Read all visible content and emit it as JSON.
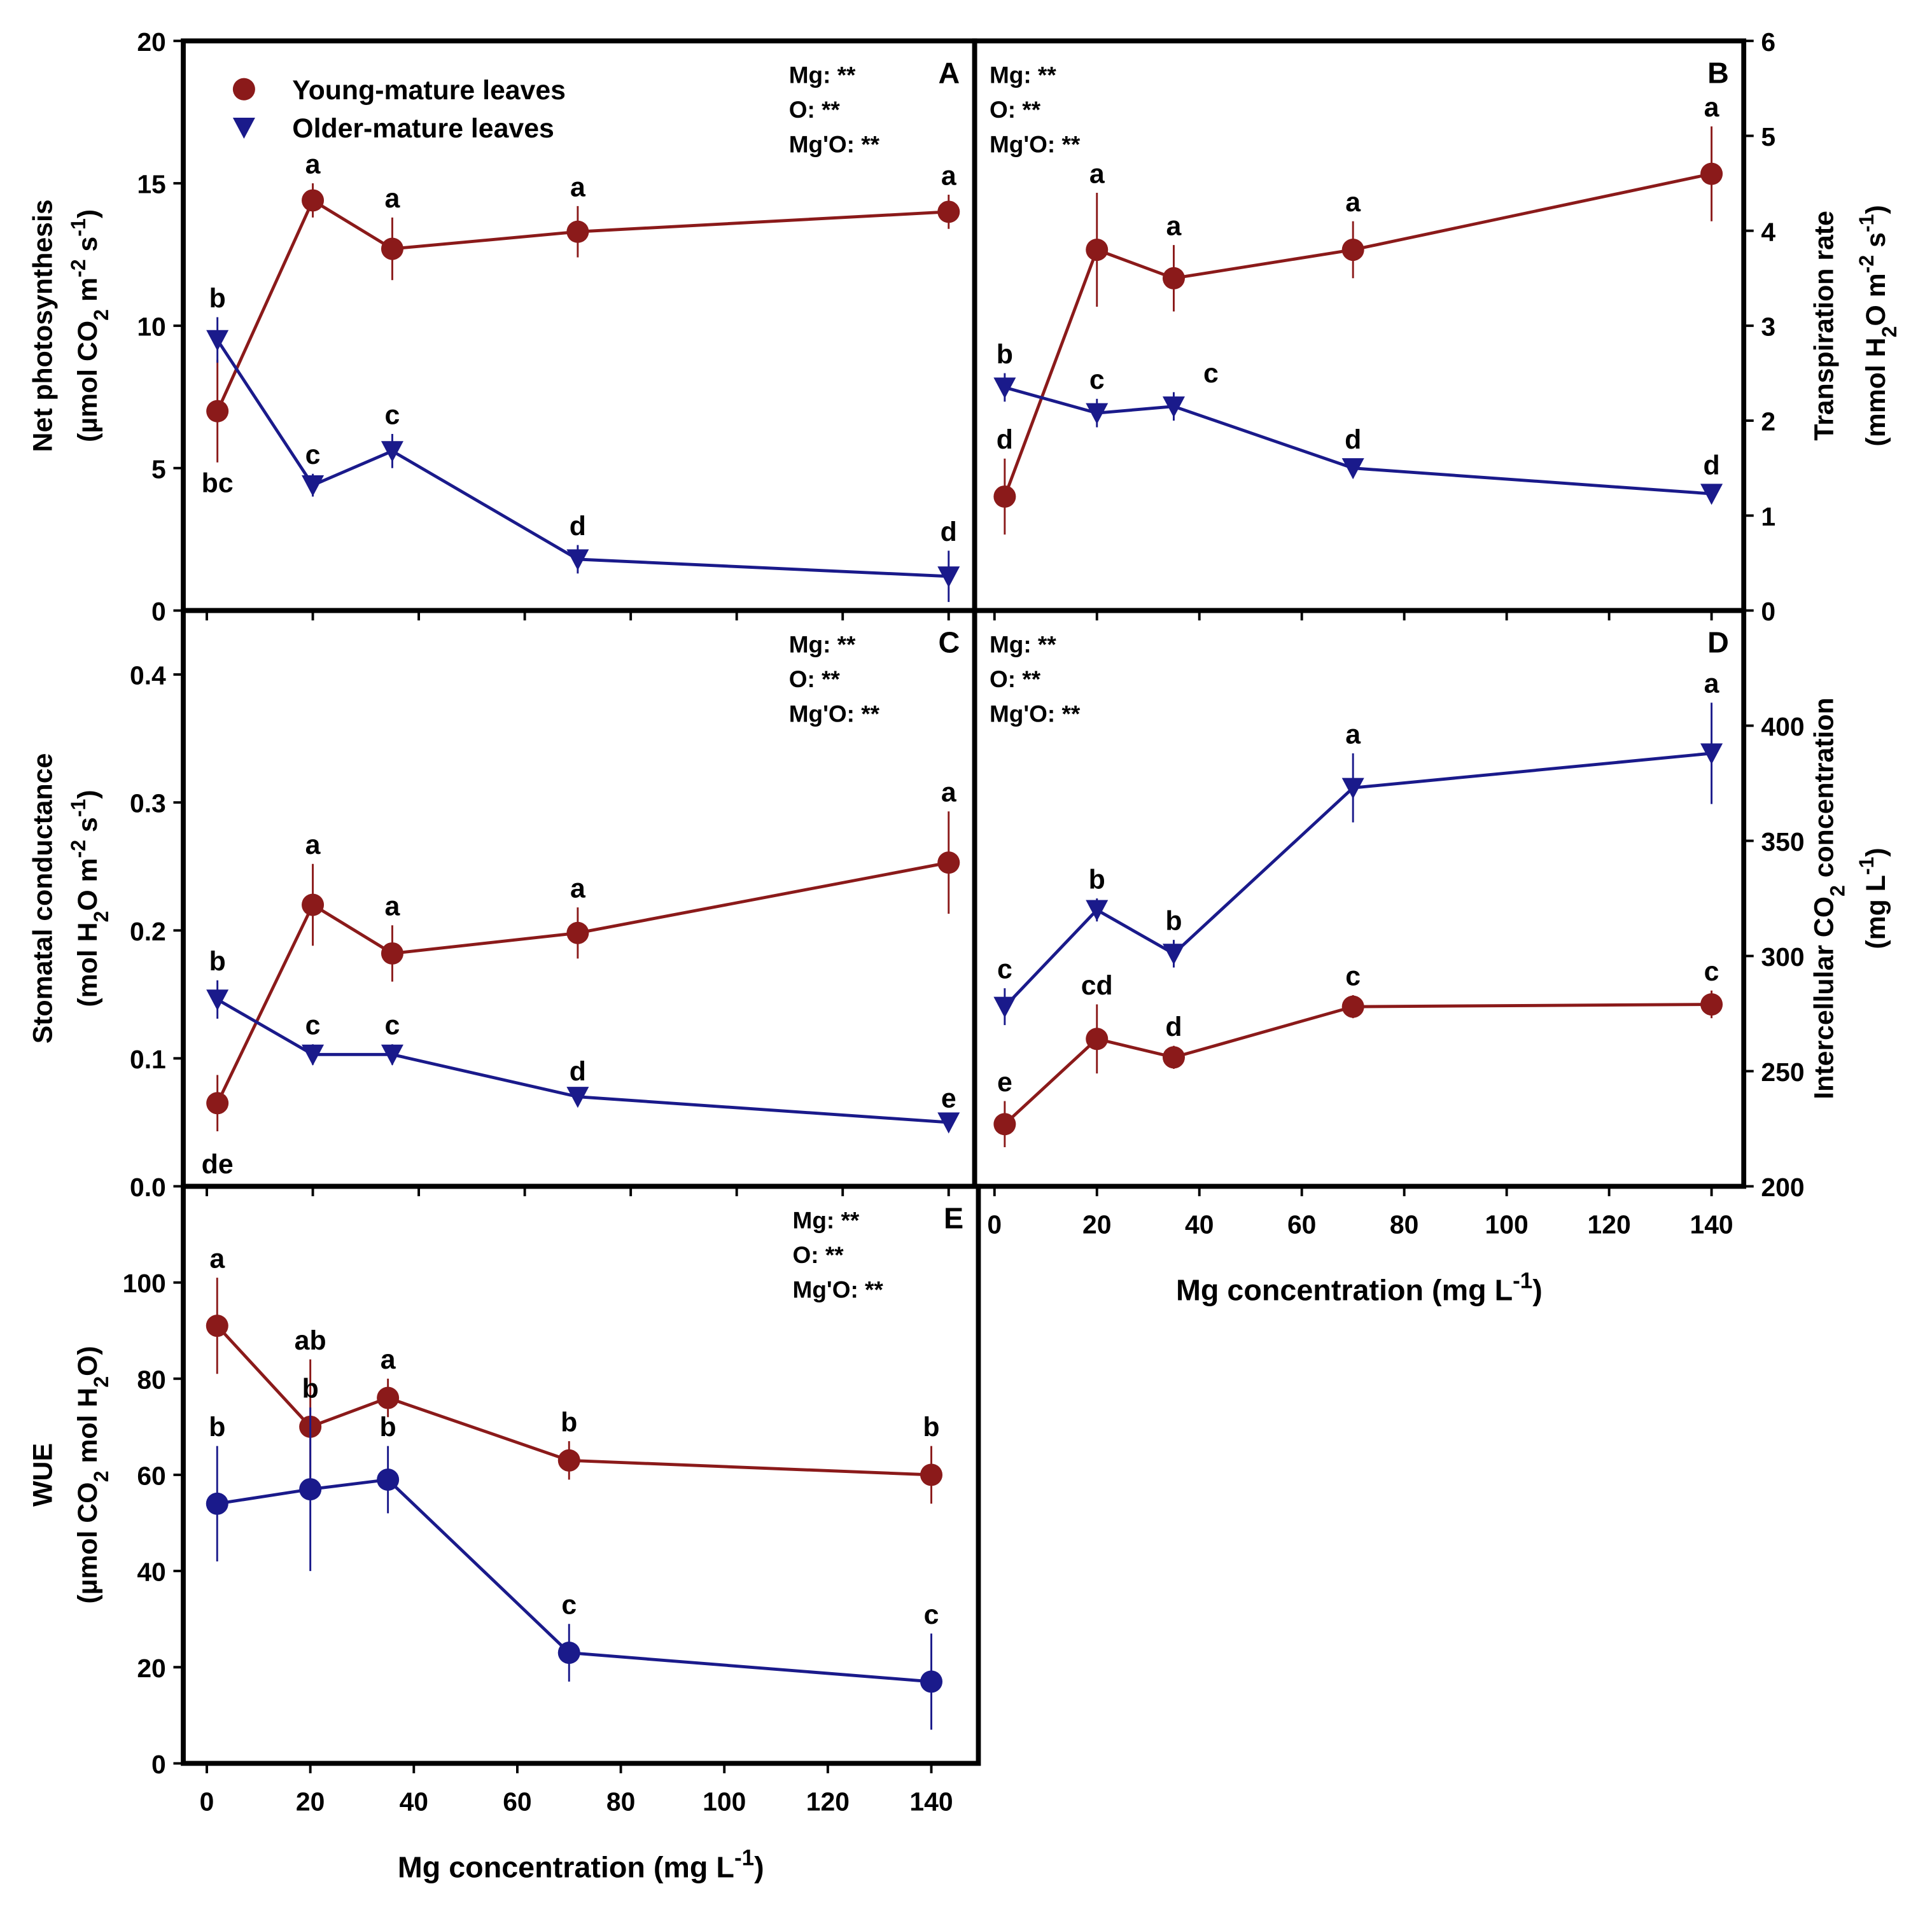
{
  "chart_data": {
    "type": "line",
    "legend": {
      "placement": "top-left",
      "entries": [
        {
          "name": "Young-mature leaves",
          "color": "#8b1a1a",
          "marker": "circle"
        },
        {
          "name": "Older-mature leaves",
          "color": "#1a1a8b",
          "marker": "triangle-down"
        }
      ]
    },
    "x": [
      2,
      20,
      35,
      70,
      140
    ],
    "xlabel": [
      {
        "t": "Mg concentration (mg L"
      },
      {
        "t": "-1",
        "s": "sup"
      },
      {
        "t": ")"
      }
    ],
    "xticks": [
      0,
      20,
      40,
      60,
      80,
      100,
      120,
      140
    ],
    "xlim": [
      0,
      140
    ],
    "panels": [
      {
        "id": "A",
        "letter": "A",
        "ylim": [
          0,
          20
        ],
        "yticks": [
          0,
          5,
          10,
          15,
          20
        ],
        "yticklabels": [
          "0",
          "5",
          "10",
          "15",
          "20"
        ],
        "ylabel": [
          [
            {
              "t": "Net photosynthesis"
            }
          ],
          [
            {
              "t": "(µmol CO"
            },
            {
              "t": "2",
              "s": "sub"
            },
            {
              "t": " m"
            },
            {
              "t": "-2",
              "s": "sup"
            },
            {
              "t": " s"
            },
            {
              "t": "-1",
              "s": "sup"
            },
            {
              "t": ")"
            }
          ]
        ],
        "stats": [
          "Mg: **",
          "O: **",
          "Mg'O: **"
        ],
        "series": [
          {
            "name": "Young-mature leaves",
            "values": [
              7.0,
              14.4,
              12.7,
              13.3,
              14.0
            ],
            "errors": [
              1.8,
              0.6,
              1.1,
              0.9,
              0.6
            ],
            "letters": [
              "bc",
              "a",
              "a",
              "a",
              "a"
            ]
          },
          {
            "name": "Older-mature leaves",
            "values": [
              9.5,
              4.4,
              5.6,
              1.8,
              1.2
            ],
            "errors": [
              0.8,
              0.4,
              0.6,
              0.5,
              0.9
            ],
            "letters": [
              "b",
              "c",
              "c",
              "d",
              "d"
            ]
          }
        ]
      },
      {
        "id": "B",
        "letter": "B",
        "ylim": [
          0,
          6
        ],
        "yticks": [
          0,
          1,
          2,
          3,
          4,
          5,
          6
        ],
        "yticklabels": [
          "0",
          "1",
          "2",
          "3",
          "4",
          "5",
          "6"
        ],
        "ylabel": [
          [
            {
              "t": "Transpiration rate"
            }
          ],
          [
            {
              "t": "(mmol H"
            },
            {
              "t": "2",
              "s": "sub"
            },
            {
              "t": "O m"
            },
            {
              "t": "-2",
              "s": "sup"
            },
            {
              "t": " s"
            },
            {
              "t": "-1",
              "s": "sup"
            },
            {
              "t": ")"
            }
          ]
        ],
        "stats": [
          "Mg: **",
          "O: **",
          "Mg'O: **"
        ],
        "series": [
          {
            "name": "Young-mature leaves",
            "values": [
              1.2,
              3.8,
              3.5,
              3.8,
              4.6
            ],
            "errors": [
              0.4,
              0.6,
              0.35,
              0.3,
              0.5
            ],
            "letters": [
              "d",
              "a",
              "a",
              "a",
              "a"
            ]
          },
          {
            "name": "Older-mature leaves",
            "values": [
              2.35,
              2.08,
              2.15,
              1.5,
              1.23
            ],
            "errors": [
              0.15,
              0.15,
              0.15,
              0.1,
              0.1
            ],
            "letters": [
              "b",
              "c",
              "c",
              "d",
              "d"
            ]
          }
        ]
      },
      {
        "id": "C",
        "letter": "C",
        "ylim": [
          0,
          0.45
        ],
        "yticks": [
          0,
          0.1,
          0.2,
          0.3,
          0.4
        ],
        "yticklabels": [
          "0.0",
          "0.1",
          "0.2",
          "0.3",
          "0.4"
        ],
        "ylabel": [
          [
            {
              "t": "Stomatal conductance"
            }
          ],
          [
            {
              "t": "(mol H"
            },
            {
              "t": "2",
              "s": "sub"
            },
            {
              "t": "O m"
            },
            {
              "t": "-2",
              "s": "sup"
            },
            {
              "t": " s"
            },
            {
              "t": "-1",
              "s": "sup"
            },
            {
              "t": ")"
            }
          ]
        ],
        "stats": [
          "Mg: **",
          "O: **",
          "Mg'O: **"
        ],
        "series": [
          {
            "name": "Young-mature leaves",
            "values": [
              0.065,
              0.22,
              0.182,
              0.198,
              0.253
            ],
            "errors": [
              0.022,
              0.032,
              0.022,
              0.02,
              0.04
            ],
            "letters": [
              "de",
              "a",
              "a",
              "a",
              "a"
            ]
          },
          {
            "name": "Older-mature leaves",
            "values": [
              0.146,
              0.103,
              0.103,
              0.07,
              0.05
            ],
            "errors": [
              0.015,
              0.008,
              0.008,
              0.005,
              0.004
            ],
            "letters": [
              "b",
              "c",
              "c",
              "d",
              "e"
            ]
          }
        ]
      },
      {
        "id": "D",
        "letter": "D",
        "ylim": [
          200,
          450
        ],
        "yticks": [
          200,
          250,
          300,
          350,
          400
        ],
        "yticklabels": [
          "200",
          "250",
          "300",
          "350",
          "400"
        ],
        "ylabel": [
          [
            {
              "t": "Intercellular CO"
            },
            {
              "t": "2",
              "s": "sub"
            },
            {
              "t": " concentration"
            }
          ],
          [
            {
              "t": "(mg L"
            },
            {
              "t": "-1",
              "s": "sup"
            },
            {
              "t": ")"
            }
          ]
        ],
        "stats": [
          "Mg: **",
          "O: **",
          "Mg'O: **"
        ],
        "series": [
          {
            "name": "Young-mature leaves",
            "values": [
              227,
              264,
              256,
              278,
              279
            ],
            "errors": [
              10,
              15,
              5,
              5,
              6
            ],
            "letters": [
              "e",
              "cd",
              "d",
              "c",
              "c"
            ]
          },
          {
            "name": "Older-mature leaves",
            "values": [
              278,
              320,
              301,
              373,
              388
            ],
            "errors": [
              8,
              5,
              6,
              15,
              22
            ],
            "letters": [
              "c",
              "b",
              "b",
              "a",
              "a"
            ]
          }
        ]
      },
      {
        "id": "E",
        "letter": "E",
        "ylim": [
          0,
          120
        ],
        "yticks": [
          0,
          20,
          40,
          60,
          80,
          100
        ],
        "yticklabels": [
          "0",
          "20",
          "40",
          "60",
          "80",
          "100"
        ],
        "ylabel": [
          [
            {
              "t": "WUE"
            }
          ],
          [
            {
              "t": "(µmol CO"
            },
            {
              "t": "2",
              "s": "sub"
            },
            {
              "t": " mol H"
            },
            {
              "t": "2",
              "s": "sub"
            },
            {
              "t": "O)"
            }
          ]
        ],
        "stats": [
          "Mg: **",
          "O: **",
          "Mg'O: **"
        ],
        "series": [
          {
            "name": "Young-mature leaves",
            "values": [
              91,
              70,
              76,
              63,
              60
            ],
            "errors": [
              10,
              14,
              4,
              4,
              6
            ],
            "letters": [
              "a",
              "ab",
              "a",
              "b",
              "b"
            ]
          },
          {
            "name": "Older-mature leaves",
            "values": [
              54,
              57,
              59,
              23,
              17
            ],
            "errors": [
              12,
              17,
              7,
              6,
              10
            ],
            "letters": [
              "b",
              "b",
              "b",
              "c",
              "c"
            ],
            "marker": "circle"
          }
        ]
      }
    ]
  }
}
